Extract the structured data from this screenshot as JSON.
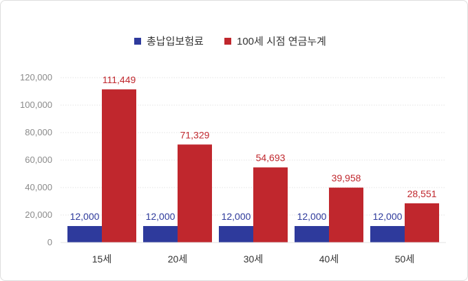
{
  "chart_data": {
    "type": "bar",
    "categories": [
      "15세",
      "20세",
      "30세",
      "40세",
      "50세"
    ],
    "series": [
      {
        "name": "총납입보험료",
        "values": [
          12000,
          12000,
          12000,
          12000,
          12000
        ],
        "labels": [
          "12,000",
          "12,000",
          "12,000",
          "12,000",
          "12,000"
        ],
        "color": "#2e3a9c"
      },
      {
        "name": "100세 시점 연금누계",
        "values": [
          111449,
          71329,
          54693,
          39958,
          28551
        ],
        "labels": [
          "111,449",
          "71,329",
          "54,693",
          "39,958",
          "28,551"
        ],
        "color": "#c0272d"
      }
    ],
    "yticks": [
      "0",
      "20,000",
      "40,000",
      "60,000",
      "80,000",
      "100,000",
      "120,000"
    ],
    "ytick_values": [
      0,
      20000,
      40000,
      60000,
      80000,
      100000,
      120000
    ],
    "ylim": [
      0,
      120000
    ],
    "grid": true,
    "legend_position": "top-center"
  }
}
